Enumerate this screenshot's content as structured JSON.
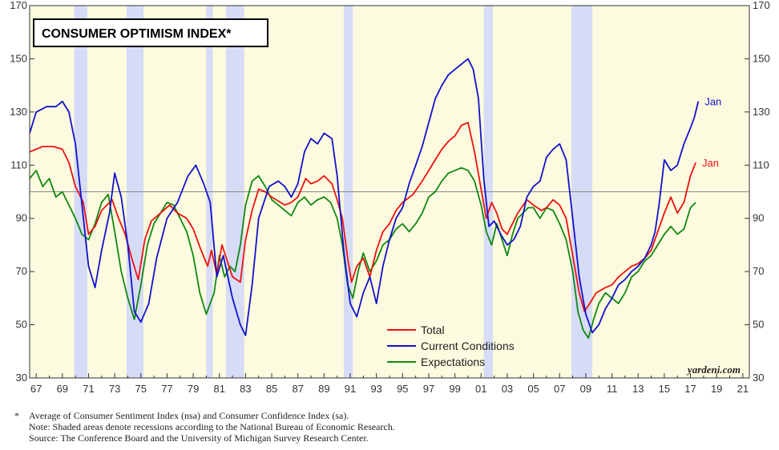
{
  "chart_data": {
    "type": "line",
    "title": "CONSUMER OPTIMISM INDEX*",
    "x_range": [
      1966.5,
      2021.5
    ],
    "ylim": [
      30,
      170
    ],
    "y_ticks": [
      30,
      50,
      70,
      90,
      110,
      130,
      150,
      170
    ],
    "x_tick_labels": [
      "67",
      "69",
      "71",
      "73",
      "75",
      "77",
      "79",
      "81",
      "83",
      "85",
      "87",
      "89",
      "91",
      "93",
      "95",
      "97",
      "99",
      "01",
      "03",
      "05",
      "07",
      "09",
      "11",
      "13",
      "15",
      "17",
      "19",
      "21"
    ],
    "x_tick_years": [
      1967,
      1969,
      1971,
      1973,
      1975,
      1977,
      1979,
      1981,
      1983,
      1985,
      1987,
      1989,
      1991,
      1993,
      1995,
      1997,
      1999,
      2001,
      2003,
      2005,
      2007,
      2009,
      2011,
      2013,
      2015,
      2017,
      2019,
      2021
    ],
    "reference_line": 100,
    "recessions": [
      [
        1969.9,
        1970.9
      ],
      [
        1973.9,
        1975.2
      ],
      [
        1980.0,
        1980.5
      ],
      [
        1981.5,
        1982.9
      ],
      [
        1990.5,
        1991.2
      ],
      [
        2001.2,
        2001.9
      ],
      [
        2007.9,
        2009.5
      ]
    ],
    "legend_placement": "bottom-center",
    "series": [
      {
        "name": "Total",
        "color": "#ee1111",
        "end_label": "Jan",
        "x": [
          1966.5,
          1967.5,
          1968.3,
          1969.0,
          1969.5,
          1970.0,
          1970.6,
          1971.0,
          1971.5,
          1972.0,
          1972.8,
          1973.3,
          1973.8,
          1974.3,
          1974.8,
          1975.3,
          1975.8,
          1976.5,
          1977.2,
          1977.8,
          1978.5,
          1979.0,
          1979.6,
          1980.1,
          1980.4,
          1980.8,
          1981.2,
          1981.6,
          1982.0,
          1982.6,
          1983.0,
          1983.5,
          1984.0,
          1984.5,
          1985.0,
          1986.0,
          1986.5,
          1987.0,
          1987.6,
          1988.0,
          1988.5,
          1989.0,
          1989.6,
          1990.0,
          1990.4,
          1990.8,
          1991.1,
          1991.5,
          1992.0,
          1992.5,
          1993.0,
          1993.5,
          1994.0,
          1994.5,
          1995.0,
          1995.8,
          1996.5,
          1997.0,
          1997.5,
          1998.0,
          1998.5,
          1999.0,
          1999.5,
          2000.0,
          2000.5,
          2001.0,
          2001.4,
          2001.8,
          2002.2,
          2002.6,
          2003.0,
          2003.3,
          2003.8,
          2004.5,
          2005.0,
          2005.6,
          2006.0,
          2006.5,
          2007.0,
          2007.5,
          2008.0,
          2008.5,
          2008.9,
          2009.3,
          2009.8,
          2010.5,
          2011.0,
          2011.5,
          2012.0,
          2012.5,
          2013.0,
          2013.5,
          2014.0,
          2014.5,
          2015.0,
          2015.5,
          2016.0,
          2016.5,
          2017.0,
          2017.4
        ],
        "y": [
          115,
          117,
          117,
          116,
          111,
          102,
          96,
          84,
          87,
          93,
          97,
          90,
          84,
          75,
          67,
          82,
          89,
          92,
          95,
          92,
          90,
          86,
          78,
          72,
          78,
          69,
          80,
          74,
          68,
          66,
          82,
          93,
          101,
          100,
          98,
          95,
          96,
          98,
          105,
          103,
          104,
          106,
          103,
          97,
          90,
          75,
          66,
          72,
          75,
          68,
          78,
          85,
          88,
          93,
          96,
          99,
          104,
          108,
          112,
          116,
          119,
          121,
          125,
          126,
          115,
          101,
          90,
          96,
          92,
          86,
          84,
          87,
          92,
          97,
          95,
          93,
          94,
          97,
          95,
          90,
          76,
          62,
          55,
          58,
          62,
          64,
          65,
          68,
          70,
          72,
          73,
          75,
          78,
          85,
          92,
          98,
          92,
          96,
          106,
          111
        ]
      },
      {
        "name": "Current Conditions",
        "color": "#1111cc",
        "end_label": "Jan",
        "x": [
          1966.5,
          1967.0,
          1967.8,
          1968.5,
          1969.0,
          1969.5,
          1970.0,
          1970.5,
          1971.0,
          1971.5,
          1972.0,
          1972.6,
          1973.0,
          1973.5,
          1974.0,
          1974.5,
          1975.0,
          1975.6,
          1976.2,
          1977.0,
          1977.8,
          1978.6,
          1979.2,
          1979.8,
          1980.3,
          1980.8,
          1981.3,
          1982.0,
          1982.6,
          1983.0,
          1983.5,
          1984.0,
          1984.8,
          1985.5,
          1986.0,
          1986.5,
          1987.0,
          1987.5,
          1988.0,
          1988.5,
          1989.0,
          1989.6,
          1990.0,
          1990.5,
          1991.0,
          1991.5,
          1992.0,
          1992.5,
          1993.0,
          1993.5,
          1994.0,
          1994.5,
          1995.0,
          1995.5,
          1996.0,
          1996.5,
          1997.0,
          1997.5,
          1998.0,
          1998.5,
          1999.0,
          1999.5,
          2000.0,
          2000.4,
          2000.8,
          2001.2,
          2001.6,
          2002.0,
          2002.5,
          2003.0,
          2003.5,
          2004.0,
          2004.5,
          2005.0,
          2005.5,
          2006.0,
          2006.5,
          2007.0,
          2007.5,
          2008.0,
          2008.5,
          2009.0,
          2009.5,
          2010.0,
          2010.5,
          2011.0,
          2011.5,
          2012.0,
          2012.5,
          2013.0,
          2013.5,
          2014.0,
          2014.3,
          2014.6,
          2015.0,
          2015.5,
          2016.0,
          2016.5,
          2017.0,
          2017.3,
          2017.6
        ],
        "y": [
          122,
          130,
          132,
          132,
          134,
          130,
          118,
          95,
          72,
          64,
          78,
          92,
          107,
          98,
          80,
          55,
          51,
          58,
          75,
          90,
          96,
          106,
          110,
          103,
          96,
          68,
          76,
          60,
          50,
          46,
          65,
          90,
          102,
          104,
          102,
          98,
          103,
          115,
          120,
          118,
          122,
          120,
          106,
          78,
          58,
          53,
          62,
          68,
          58,
          72,
          82,
          90,
          94,
          103,
          110,
          117,
          126,
          135,
          140,
          144,
          146,
          148,
          150,
          146,
          135,
          105,
          87,
          89,
          84,
          80,
          82,
          87,
          98,
          102,
          104,
          113,
          116,
          118,
          112,
          90,
          68,
          54,
          47,
          50,
          56,
          60,
          65,
          67,
          70,
          72,
          75,
          80,
          85,
          95,
          112,
          108,
          110,
          118,
          124,
          128,
          134
        ]
      },
      {
        "name": "Expectations",
        "color": "#118811",
        "end_label": "",
        "x": [
          1966.5,
          1967.0,
          1967.5,
          1968.0,
          1968.5,
          1969.0,
          1969.5,
          1970.0,
          1970.5,
          1971.0,
          1971.5,
          1972.0,
          1972.5,
          1973.0,
          1973.5,
          1974.0,
          1974.5,
          1975.0,
          1975.5,
          1976.0,
          1976.5,
          1977.0,
          1977.5,
          1978.0,
          1978.5,
          1979.0,
          1979.5,
          1980.0,
          1980.3,
          1980.6,
          1981.0,
          1981.4,
          1981.8,
          1982.2,
          1982.6,
          1983.0,
          1983.5,
          1984.0,
          1984.5,
          1985.0,
          1985.5,
          1986.0,
          1986.5,
          1987.0,
          1987.5,
          1988.0,
          1988.5,
          1989.0,
          1989.5,
          1990.0,
          1990.4,
          1990.8,
          1991.2,
          1991.6,
          1992.0,
          1992.5,
          1993.0,
          1993.5,
          1994.0,
          1994.5,
          1995.0,
          1995.5,
          1996.0,
          1996.5,
          1997.0,
          1997.5,
          1998.0,
          1998.5,
          1999.0,
          1999.5,
          2000.0,
          2000.5,
          2001.0,
          2001.4,
          2001.8,
          2002.2,
          2002.6,
          2003.0,
          2003.4,
          2003.8,
          2004.2,
          2004.6,
          2005.0,
          2005.5,
          2006.0,
          2006.5,
          2007.0,
          2007.5,
          2008.0,
          2008.4,
          2008.8,
          2009.2,
          2009.6,
          2010.0,
          2010.5,
          2011.0,
          2011.5,
          2012.0,
          2012.5,
          2013.0,
          2013.5,
          2014.0,
          2014.5,
          2015.0,
          2015.5,
          2016.0,
          2016.5,
          2017.0,
          2017.4
        ],
        "y": [
          105,
          108,
          102,
          105,
          98,
          100,
          95,
          90,
          84,
          82,
          88,
          96,
          99,
          85,
          70,
          60,
          52,
          65,
          80,
          88,
          92,
          96,
          95,
          90,
          85,
          76,
          62,
          54,
          58,
          62,
          76,
          68,
          72,
          70,
          80,
          95,
          104,
          106,
          102,
          97,
          95,
          93,
          91,
          96,
          98,
          95,
          97,
          98,
          96,
          90,
          80,
          65,
          60,
          70,
          77,
          70,
          74,
          80,
          82,
          86,
          88,
          85,
          88,
          92,
          98,
          100,
          104,
          107,
          108,
          109,
          108,
          104,
          95,
          85,
          80,
          88,
          82,
          76,
          84,
          90,
          92,
          94,
          94,
          90,
          94,
          93,
          88,
          82,
          70,
          55,
          48,
          45,
          52,
          58,
          62,
          60,
          58,
          62,
          68,
          70,
          74,
          76,
          80,
          84,
          87,
          84,
          86,
          94,
          96
        ]
      }
    ]
  },
  "legend": [
    {
      "label": "Total",
      "color": "#ee1111"
    },
    {
      "label": "Current Conditions",
      "color": "#1111cc"
    },
    {
      "label": "Expectations",
      "color": "#118811"
    }
  ],
  "credit": "yardeni.com",
  "footnotes": {
    "mark": "*",
    "line1": "Average of Consumer Sentiment Index (nsa) and Consumer Confidence Index (sa).",
    "line2": "Note: Shaded areas denote recessions according to the National Bureau of Economic Research.",
    "line3": "Source: The Conference Board and the University of Michigan Survey Research Center."
  },
  "colors": {
    "plot_background": "#fdfbdf",
    "recession_band": "#d6dcf6",
    "reference_line": "#888888"
  }
}
